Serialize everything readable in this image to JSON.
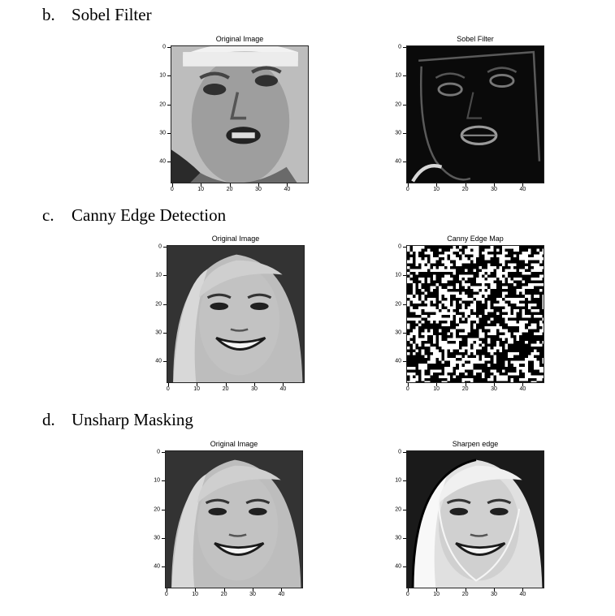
{
  "sections": [
    {
      "letter": "b.",
      "title": "Sobel Filter",
      "panels": [
        {
          "title": "Original Image",
          "kind": "face-grimace"
        },
        {
          "title": "Sobel Filter",
          "kind": "sobel"
        }
      ]
    },
    {
      "letter": "c.",
      "title": "Canny Edge Detection",
      "panels": [
        {
          "title": "Original Image",
          "kind": "face-smile"
        },
        {
          "title": "Canny Edge Map",
          "kind": "canny"
        }
      ]
    },
    {
      "letter": "d.",
      "title": "Unsharp Masking",
      "panels": [
        {
          "title": "Original Image",
          "kind": "face-smile"
        },
        {
          "title": "Sharpen edge",
          "kind": "face-sharp"
        }
      ]
    }
  ],
  "axis": {
    "x_ticks": [
      "0",
      "10",
      "20",
      "30",
      "40"
    ],
    "y_ticks": [
      "0",
      "10",
      "20",
      "30",
      "40"
    ]
  }
}
